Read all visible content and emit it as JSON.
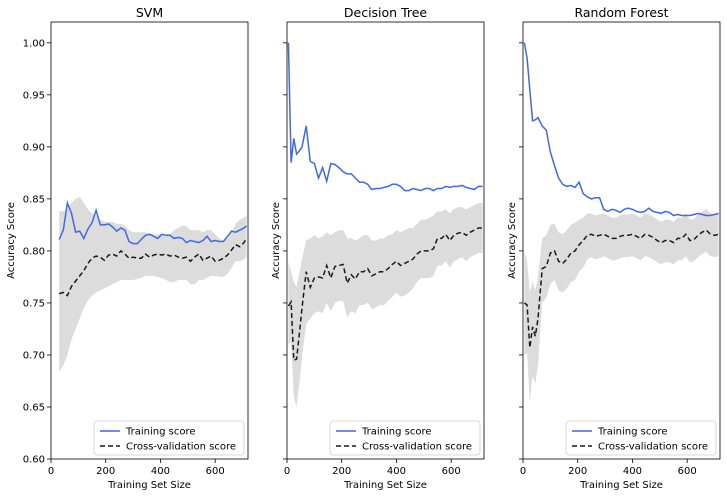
{
  "chart_data": [
    {
      "type": "line",
      "title": "SVM",
      "xlabel": "Training Set Size",
      "ylabel": "Accuracy Score",
      "xlim": [
        0,
        720
      ],
      "ylim": [
        0.6,
        1.02
      ],
      "xticks": [
        0,
        200,
        400,
        600
      ],
      "yticks": [
        0.6,
        0.65,
        0.7,
        0.75,
        0.8,
        0.85,
        0.9,
        0.95,
        1.0
      ],
      "legend_position": "lower-right",
      "x": [
        30,
        45,
        60,
        75,
        90,
        105,
        120,
        135,
        150,
        165,
        180,
        195,
        210,
        225,
        240,
        255,
        270,
        285,
        300,
        315,
        330,
        345,
        360,
        375,
        390,
        405,
        420,
        435,
        450,
        465,
        480,
        495,
        510,
        525,
        540,
        555,
        570,
        585,
        600,
        615,
        630,
        645,
        660,
        675,
        690,
        705,
        715
      ],
      "series": [
        {
          "name": "Training score",
          "style": "solid",
          "color": "#4169e1",
          "values": [
            0.811,
            0.82,
            0.846,
            0.836,
            0.818,
            0.819,
            0.812,
            0.821,
            0.827,
            0.839,
            0.825,
            0.825,
            0.826,
            0.823,
            0.819,
            0.822,
            0.82,
            0.809,
            0.807,
            0.807,
            0.811,
            0.815,
            0.816,
            0.814,
            0.812,
            0.816,
            0.815,
            0.815,
            0.812,
            0.813,
            0.812,
            0.808,
            0.81,
            0.809,
            0.808,
            0.81,
            0.814,
            0.809,
            0.81,
            0.809,
            0.809,
            0.814,
            0.819,
            0.818,
            0.82,
            0.822,
            0.824
          ]
        },
        {
          "name": "Cross-validation score",
          "style": "dashed",
          "color": "#1a1a1a",
          "values": [
            0.759,
            0.76,
            0.757,
            0.766,
            0.771,
            0.776,
            0.781,
            0.788,
            0.793,
            0.795,
            0.794,
            0.791,
            0.796,
            0.797,
            0.795,
            0.8,
            0.797,
            0.793,
            0.794,
            0.793,
            0.793,
            0.797,
            0.794,
            0.796,
            0.797,
            0.796,
            0.797,
            0.795,
            0.796,
            0.794,
            0.793,
            0.794,
            0.79,
            0.794,
            0.797,
            0.791,
            0.793,
            0.795,
            0.79,
            0.791,
            0.793,
            0.796,
            0.801,
            0.806,
            0.804,
            0.808,
            0.812
          ]
        }
      ],
      "band": {
        "upper": [
          0.838,
          0.838,
          0.84,
          0.846,
          0.85,
          0.852,
          0.846,
          0.84,
          0.836,
          0.834,
          0.83,
          0.828,
          0.828,
          0.828,
          0.826,
          0.826,
          0.824,
          0.82,
          0.818,
          0.818,
          0.818,
          0.818,
          0.816,
          0.816,
          0.816,
          0.816,
          0.816,
          0.816,
          0.82,
          0.822,
          0.824,
          0.824,
          0.82,
          0.82,
          0.82,
          0.818,
          0.82,
          0.82,
          0.816,
          0.812,
          0.81,
          0.812,
          0.818,
          0.826,
          0.83,
          0.832,
          0.834
        ],
        "lower": [
          0.684,
          0.69,
          0.7,
          0.715,
          0.725,
          0.735,
          0.745,
          0.752,
          0.757,
          0.76,
          0.762,
          0.764,
          0.766,
          0.768,
          0.77,
          0.772,
          0.772,
          0.772,
          0.772,
          0.773,
          0.774,
          0.776,
          0.776,
          0.776,
          0.775,
          0.774,
          0.772,
          0.77,
          0.77,
          0.772,
          0.772,
          0.772,
          0.768,
          0.768,
          0.772,
          0.772,
          0.774,
          0.776,
          0.776,
          0.775,
          0.775,
          0.778,
          0.784,
          0.79,
          0.79,
          0.792,
          0.794
        ]
      }
    },
    {
      "type": "line",
      "title": "Decision Tree",
      "xlabel": "Training Set Size",
      "ylabel": "Accuracy Score",
      "xlim": [
        0,
        720
      ],
      "ylim": [
        0.6,
        1.02
      ],
      "xticks": [
        0,
        200,
        400,
        600
      ],
      "yticks": [
        0.6,
        0.65,
        0.7,
        0.75,
        0.8,
        0.85,
        0.9,
        0.95,
        1.0
      ],
      "legend_position": "lower-right",
      "x": [
        5,
        15,
        25,
        35,
        45,
        55,
        70,
        85,
        100,
        115,
        130,
        145,
        160,
        175,
        190,
        205,
        220,
        235,
        250,
        265,
        280,
        295,
        310,
        325,
        340,
        355,
        370,
        385,
        400,
        415,
        430,
        445,
        460,
        475,
        490,
        505,
        520,
        535,
        550,
        565,
        580,
        595,
        610,
        625,
        640,
        655,
        670,
        685,
        700,
        715
      ],
      "series": [
        {
          "name": "Training score",
          "style": "solid",
          "color": "#4169e1",
          "values": [
            1.0,
            0.885,
            0.908,
            0.893,
            0.896,
            0.9,
            0.92,
            0.886,
            0.884,
            0.87,
            0.88,
            0.867,
            0.884,
            0.883,
            0.88,
            0.876,
            0.874,
            0.874,
            0.87,
            0.866,
            0.866,
            0.864,
            0.859,
            0.86,
            0.86,
            0.861,
            0.862,
            0.864,
            0.864,
            0.862,
            0.858,
            0.858,
            0.86,
            0.859,
            0.858,
            0.86,
            0.86,
            0.858,
            0.86,
            0.86,
            0.862,
            0.861,
            0.862,
            0.862,
            0.863,
            0.861,
            0.86,
            0.859,
            0.862,
            0.862
          ]
        },
        {
          "name": "Cross-validation score",
          "style": "dashed",
          "color": "#1a1a1a",
          "values": [
            0.747,
            0.751,
            0.695,
            0.696,
            0.72,
            0.745,
            0.78,
            0.765,
            0.774,
            0.775,
            0.774,
            0.786,
            0.774,
            0.785,
            0.786,
            0.787,
            0.769,
            0.777,
            0.773,
            0.78,
            0.78,
            0.783,
            0.776,
            0.778,
            0.78,
            0.78,
            0.783,
            0.787,
            0.79,
            0.786,
            0.788,
            0.79,
            0.792,
            0.797,
            0.8,
            0.8,
            0.8,
            0.802,
            0.812,
            0.812,
            0.816,
            0.81,
            0.815,
            0.817,
            0.818,
            0.815,
            0.818,
            0.82,
            0.822,
            0.822
          ]
        }
      ],
      "band": {
        "upper": [
          0.79,
          0.78,
          0.77,
          0.765,
          0.778,
          0.792,
          0.81,
          0.812,
          0.815,
          0.812,
          0.814,
          0.818,
          0.815,
          0.818,
          0.82,
          0.82,
          0.812,
          0.812,
          0.81,
          0.812,
          0.815,
          0.815,
          0.81,
          0.81,
          0.812,
          0.812,
          0.815,
          0.816,
          0.82,
          0.818,
          0.82,
          0.822,
          0.822,
          0.826,
          0.83,
          0.83,
          0.832,
          0.834,
          0.838,
          0.838,
          0.84,
          0.836,
          0.84,
          0.842,
          0.842,
          0.84,
          0.842,
          0.844,
          0.846,
          0.846
        ],
        "lower": [
          0.71,
          0.712,
          0.66,
          0.65,
          0.672,
          0.698,
          0.73,
          0.735,
          0.74,
          0.742,
          0.74,
          0.75,
          0.742,
          0.75,
          0.752,
          0.752,
          0.736,
          0.742,
          0.74,
          0.748,
          0.748,
          0.75,
          0.744,
          0.746,
          0.748,
          0.748,
          0.752,
          0.756,
          0.76,
          0.756,
          0.757,
          0.76,
          0.764,
          0.77,
          0.774,
          0.774,
          0.774,
          0.776,
          0.786,
          0.786,
          0.79,
          0.784,
          0.79,
          0.792,
          0.794,
          0.79,
          0.794,
          0.796,
          0.798,
          0.798
        ]
      }
    },
    {
      "type": "line",
      "title": "Random Forest",
      "xlabel": "Training Set Size",
      "ylabel": "Accuracy Score",
      "xlim": [
        0,
        720
      ],
      "ylim": [
        0.6,
        1.02
      ],
      "xticks": [
        0,
        200,
        400,
        600
      ],
      "yticks": [
        0.6,
        0.65,
        0.7,
        0.75,
        0.8,
        0.85,
        0.9,
        0.95,
        1.0
      ],
      "legend_position": "lower-right",
      "x": [
        5,
        15,
        25,
        35,
        45,
        55,
        70,
        85,
        100,
        115,
        130,
        145,
        160,
        175,
        190,
        205,
        220,
        235,
        250,
        265,
        280,
        295,
        310,
        325,
        340,
        355,
        370,
        385,
        400,
        415,
        430,
        445,
        460,
        475,
        490,
        505,
        520,
        535,
        550,
        565,
        580,
        595,
        610,
        625,
        640,
        655,
        670,
        685,
        700,
        715
      ],
      "series": [
        {
          "name": "Training score",
          "style": "solid",
          "color": "#4169e1",
          "values": [
            1.0,
            0.985,
            0.955,
            0.925,
            0.926,
            0.928,
            0.92,
            0.916,
            0.895,
            0.882,
            0.87,
            0.864,
            0.862,
            0.863,
            0.861,
            0.866,
            0.855,
            0.852,
            0.85,
            0.851,
            0.851,
            0.84,
            0.838,
            0.84,
            0.839,
            0.837,
            0.84,
            0.841,
            0.84,
            0.838,
            0.837,
            0.838,
            0.841,
            0.838,
            0.837,
            0.836,
            0.838,
            0.837,
            0.834,
            0.835,
            0.834,
            0.834,
            0.834,
            0.835,
            0.836,
            0.835,
            0.834,
            0.834,
            0.835,
            0.836
          ]
        },
        {
          "name": "Cross-validation score",
          "style": "dashed",
          "color": "#1a1a1a",
          "values": [
            0.75,
            0.748,
            0.707,
            0.727,
            0.718,
            0.735,
            0.783,
            0.785,
            0.798,
            0.8,
            0.79,
            0.788,
            0.792,
            0.798,
            0.8,
            0.806,
            0.81,
            0.815,
            0.816,
            0.814,
            0.815,
            0.816,
            0.814,
            0.812,
            0.812,
            0.814,
            0.815,
            0.815,
            0.816,
            0.814,
            0.812,
            0.816,
            0.815,
            0.813,
            0.81,
            0.808,
            0.81,
            0.81,
            0.808,
            0.812,
            0.812,
            0.816,
            0.81,
            0.811,
            0.815,
            0.818,
            0.82,
            0.816,
            0.815,
            0.816
          ]
        }
      ],
      "band": {
        "upper": [
          0.8,
          0.79,
          0.76,
          0.77,
          0.762,
          0.775,
          0.812,
          0.815,
          0.825,
          0.826,
          0.818,
          0.816,
          0.82,
          0.825,
          0.827,
          0.83,
          0.832,
          0.836,
          0.836,
          0.834,
          0.835,
          0.836,
          0.834,
          0.832,
          0.832,
          0.834,
          0.835,
          0.835,
          0.836,
          0.834,
          0.832,
          0.836,
          0.835,
          0.833,
          0.83,
          0.828,
          0.83,
          0.83,
          0.828,
          0.832,
          0.832,
          0.836,
          0.83,
          0.831,
          0.835,
          0.838,
          0.84,
          0.836,
          0.835,
          0.836
        ],
        "lower": [
          0.7,
          0.702,
          0.655,
          0.68,
          0.672,
          0.69,
          0.75,
          0.755,
          0.768,
          0.772,
          0.762,
          0.76,
          0.764,
          0.77,
          0.772,
          0.78,
          0.784,
          0.792,
          0.794,
          0.792,
          0.793,
          0.795,
          0.793,
          0.791,
          0.791,
          0.793,
          0.794,
          0.794,
          0.795,
          0.793,
          0.791,
          0.795,
          0.794,
          0.792,
          0.789,
          0.787,
          0.789,
          0.789,
          0.787,
          0.791,
          0.791,
          0.795,
          0.789,
          0.79,
          0.794,
          0.797,
          0.799,
          0.795,
          0.794,
          0.795
        ]
      }
    }
  ]
}
